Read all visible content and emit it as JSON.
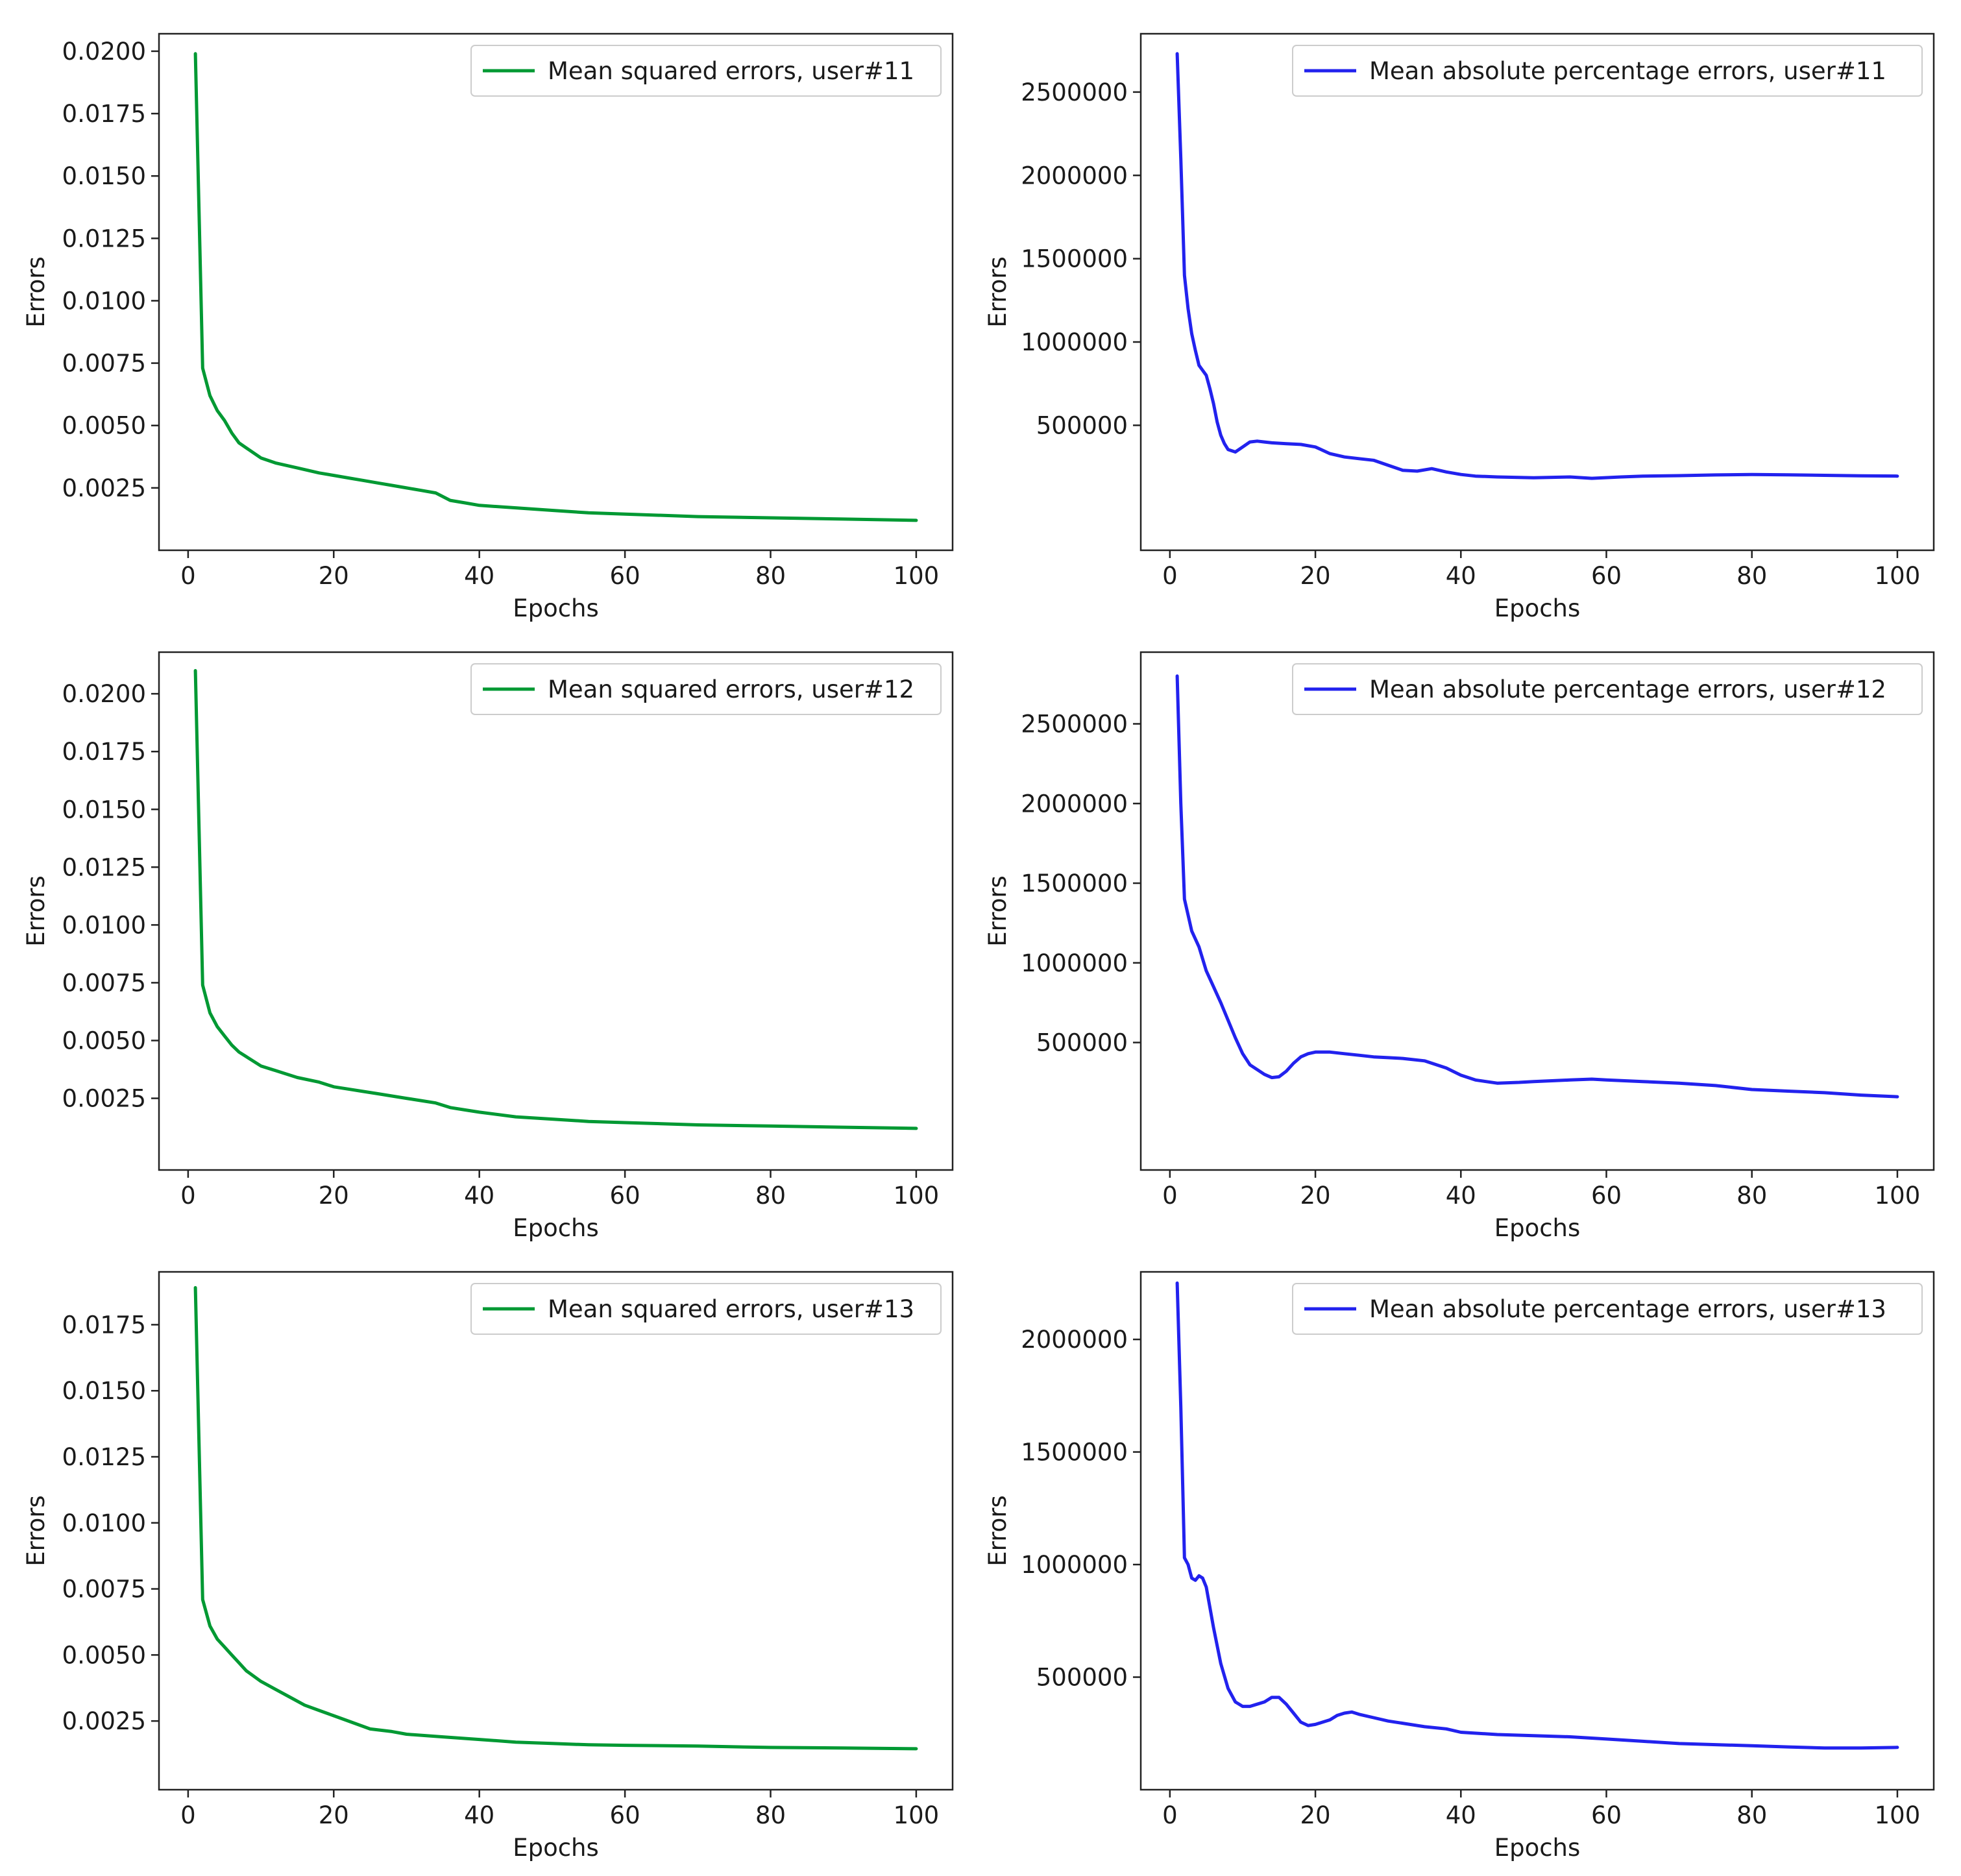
{
  "figure": {
    "rows": 3,
    "cols": 2
  },
  "chart_data": [
    {
      "type": "line",
      "xlabel": "Epochs",
      "ylabel": "Errors",
      "xlim": [
        -4,
        105
      ],
      "ylim": [
        0.0,
        0.0207
      ],
      "xticks": [
        0,
        20,
        40,
        60,
        80,
        100
      ],
      "yticks": [
        0.0025,
        0.005,
        0.0075,
        0.01,
        0.0125,
        0.015,
        0.0175,
        0.02
      ],
      "ytick_decimals": 4,
      "legend_position": "top-right",
      "series": [
        {
          "name": "Mean squared errors, user#11",
          "color": "#009933",
          "x": [
            1,
            2,
            3,
            4,
            5,
            6,
            7,
            8,
            10,
            12,
            15,
            18,
            20,
            22,
            24,
            26,
            28,
            30,
            32,
            34,
            36,
            38,
            40,
            45,
            50,
            55,
            60,
            70,
            80,
            90,
            100
          ],
          "y": [
            0.0199,
            0.0073,
            0.0062,
            0.0056,
            0.0052,
            0.0047,
            0.0043,
            0.0041,
            0.0037,
            0.0035,
            0.0033,
            0.0031,
            0.003,
            0.0029,
            0.0028,
            0.0027,
            0.0026,
            0.0025,
            0.0024,
            0.0023,
            0.002,
            0.0019,
            0.0018,
            0.0017,
            0.0016,
            0.0015,
            0.00145,
            0.00135,
            0.0013,
            0.00125,
            0.0012
          ]
        }
      ]
    },
    {
      "type": "line",
      "xlabel": "Epochs",
      "ylabel": "Errors",
      "xlim": [
        -4,
        105
      ],
      "ylim": [
        -250000,
        2850000
      ],
      "xticks": [
        0,
        20,
        40,
        60,
        80,
        100
      ],
      "yticks": [
        500000,
        1000000,
        1500000,
        2000000,
        2500000
      ],
      "ytick_decimals": 0,
      "legend_position": "top-right",
      "series": [
        {
          "name": "Mean absolute percentage errors, user#11",
          "color": "#2222ee",
          "x": [
            1,
            1.5,
            2,
            2.5,
            3,
            3.5,
            4,
            4.5,
            5,
            5.5,
            6,
            6.5,
            7,
            7.5,
            8,
            9,
            10,
            11,
            12,
            13,
            14,
            16,
            18,
            20,
            22,
            24,
            26,
            28,
            30,
            32,
            34,
            36,
            38,
            40,
            42,
            45,
            50,
            55,
            58,
            62,
            65,
            70,
            75,
            80,
            85,
            90,
            95,
            100
          ],
          "y": [
            2730000,
            2100000,
            1400000,
            1200000,
            1050000,
            950000,
            860000,
            830000,
            800000,
            720000,
            630000,
            520000,
            440000,
            390000,
            355000,
            340000,
            370000,
            400000,
            405000,
            400000,
            395000,
            390000,
            385000,
            370000,
            330000,
            310000,
            300000,
            290000,
            260000,
            230000,
            225000,
            240000,
            220000,
            205000,
            195000,
            190000,
            185000,
            190000,
            182000,
            190000,
            195000,
            198000,
            202000,
            205000,
            203000,
            200000,
            197000,
            195000
          ]
        }
      ]
    },
    {
      "type": "line",
      "xlabel": "Epochs",
      "ylabel": "Errors",
      "xlim": [
        -4,
        105
      ],
      "ylim": [
        -0.0006,
        0.0218
      ],
      "xticks": [
        0,
        20,
        40,
        60,
        80,
        100
      ],
      "yticks": [
        0.0025,
        0.005,
        0.0075,
        0.01,
        0.0125,
        0.015,
        0.0175,
        0.02
      ],
      "ytick_decimals": 4,
      "legend_position": "top-right",
      "series": [
        {
          "name": "Mean squared errors, user#12",
          "color": "#009933",
          "x": [
            1,
            2,
            3,
            4,
            5,
            6,
            7,
            8,
            10,
            12,
            15,
            18,
            20,
            22,
            24,
            26,
            28,
            30,
            32,
            34,
            36,
            38,
            40,
            45,
            50,
            55,
            60,
            70,
            80,
            90,
            100
          ],
          "y": [
            0.021,
            0.0074,
            0.0062,
            0.0056,
            0.0052,
            0.0048,
            0.0045,
            0.0043,
            0.0039,
            0.0037,
            0.0034,
            0.0032,
            0.003,
            0.0029,
            0.0028,
            0.0027,
            0.0026,
            0.0025,
            0.0024,
            0.0023,
            0.0021,
            0.002,
            0.0019,
            0.0017,
            0.0016,
            0.0015,
            0.00145,
            0.00135,
            0.0013,
            0.00125,
            0.0012
          ]
        }
      ]
    },
    {
      "type": "line",
      "xlabel": "Epochs",
      "ylabel": "Errors",
      "xlim": [
        -4,
        105
      ],
      "ylim": [
        -300000,
        2950000
      ],
      "xticks": [
        0,
        20,
        40,
        60,
        80,
        100
      ],
      "yticks": [
        500000,
        1000000,
        1500000,
        2000000,
        2500000
      ],
      "ytick_decimals": 0,
      "legend_position": "top-right",
      "series": [
        {
          "name": "Mean absolute percentage errors, user#12",
          "color": "#2222ee",
          "x": [
            1,
            1.5,
            2,
            2.5,
            3,
            4,
            5,
            6,
            7,
            8,
            9,
            10,
            11,
            12,
            13,
            14,
            15,
            16,
            17,
            18,
            19,
            20,
            21,
            22,
            24,
            26,
            28,
            30,
            32,
            35,
            38,
            40,
            42,
            45,
            48,
            50,
            55,
            58,
            60,
            65,
            70,
            75,
            80,
            85,
            90,
            95,
            100
          ],
          "y": [
            2800000,
            2000000,
            1400000,
            1300000,
            1200000,
            1100000,
            950000,
            850000,
            750000,
            640000,
            530000,
            430000,
            360000,
            330000,
            300000,
            280000,
            285000,
            320000,
            370000,
            410000,
            430000,
            440000,
            440000,
            440000,
            430000,
            420000,
            410000,
            405000,
            400000,
            385000,
            340000,
            295000,
            265000,
            245000,
            250000,
            255000,
            265000,
            270000,
            265000,
            255000,
            245000,
            230000,
            205000,
            195000,
            185000,
            170000,
            160000
          ]
        }
      ]
    },
    {
      "type": "line",
      "xlabel": "Epochs",
      "ylabel": "Errors",
      "xlim": [
        -4,
        105
      ],
      "ylim": [
        -0.0001,
        0.0195
      ],
      "xticks": [
        0,
        20,
        40,
        60,
        80,
        100
      ],
      "yticks": [
        0.0025,
        0.005,
        0.0075,
        0.01,
        0.0125,
        0.015,
        0.0175
      ],
      "ytick_decimals": 4,
      "legend_position": "top-right",
      "series": [
        {
          "name": "Mean squared errors, user#13",
          "color": "#009933",
          "x": [
            1,
            2,
            3,
            4,
            5,
            6,
            7,
            8,
            10,
            12,
            14,
            16,
            18,
            20,
            22,
            25,
            28,
            30,
            35,
            40,
            45,
            50,
            55,
            60,
            70,
            80,
            90,
            100
          ],
          "y": [
            0.0189,
            0.0071,
            0.0061,
            0.0056,
            0.0053,
            0.005,
            0.0047,
            0.0044,
            0.004,
            0.0037,
            0.0034,
            0.0031,
            0.0029,
            0.0027,
            0.0025,
            0.0022,
            0.0021,
            0.002,
            0.0019,
            0.0018,
            0.0017,
            0.00165,
            0.0016,
            0.00158,
            0.00155,
            0.0015,
            0.00148,
            0.00145
          ]
        }
      ]
    },
    {
      "type": "line",
      "xlabel": "Epochs",
      "ylabel": "Errors",
      "xlim": [
        -4,
        105
      ],
      "ylim": [
        0,
        2300000
      ],
      "xticks": [
        0,
        20,
        40,
        60,
        80,
        100
      ],
      "yticks": [
        500000,
        1000000,
        1500000,
        2000000
      ],
      "ytick_decimals": 0,
      "legend_position": "top-right",
      "series": [
        {
          "name": "Mean absolute percentage errors, user#13",
          "color": "#2222ee",
          "x": [
            1,
            1.5,
            2,
            2.5,
            3,
            3.5,
            4,
            4.5,
            5,
            6,
            7,
            8,
            9,
            10,
            11,
            12,
            13,
            14,
            15,
            16,
            17,
            18,
            19,
            20,
            21,
            22,
            23,
            24,
            25,
            26,
            28,
            30,
            32,
            35,
            38,
            40,
            45,
            50,
            55,
            60,
            65,
            70,
            75,
            80,
            85,
            90,
            95,
            100
          ],
          "y": [
            2250000,
            1700000,
            1030000,
            1000000,
            940000,
            930000,
            950000,
            940000,
            900000,
            720000,
            560000,
            450000,
            390000,
            370000,
            370000,
            380000,
            390000,
            410000,
            410000,
            380000,
            340000,
            300000,
            285000,
            290000,
            300000,
            310000,
            330000,
            340000,
            345000,
            335000,
            320000,
            305000,
            295000,
            280000,
            270000,
            255000,
            245000,
            240000,
            235000,
            225000,
            215000,
            205000,
            200000,
            195000,
            190000,
            185000,
            185000,
            188000
          ]
        }
      ]
    }
  ]
}
